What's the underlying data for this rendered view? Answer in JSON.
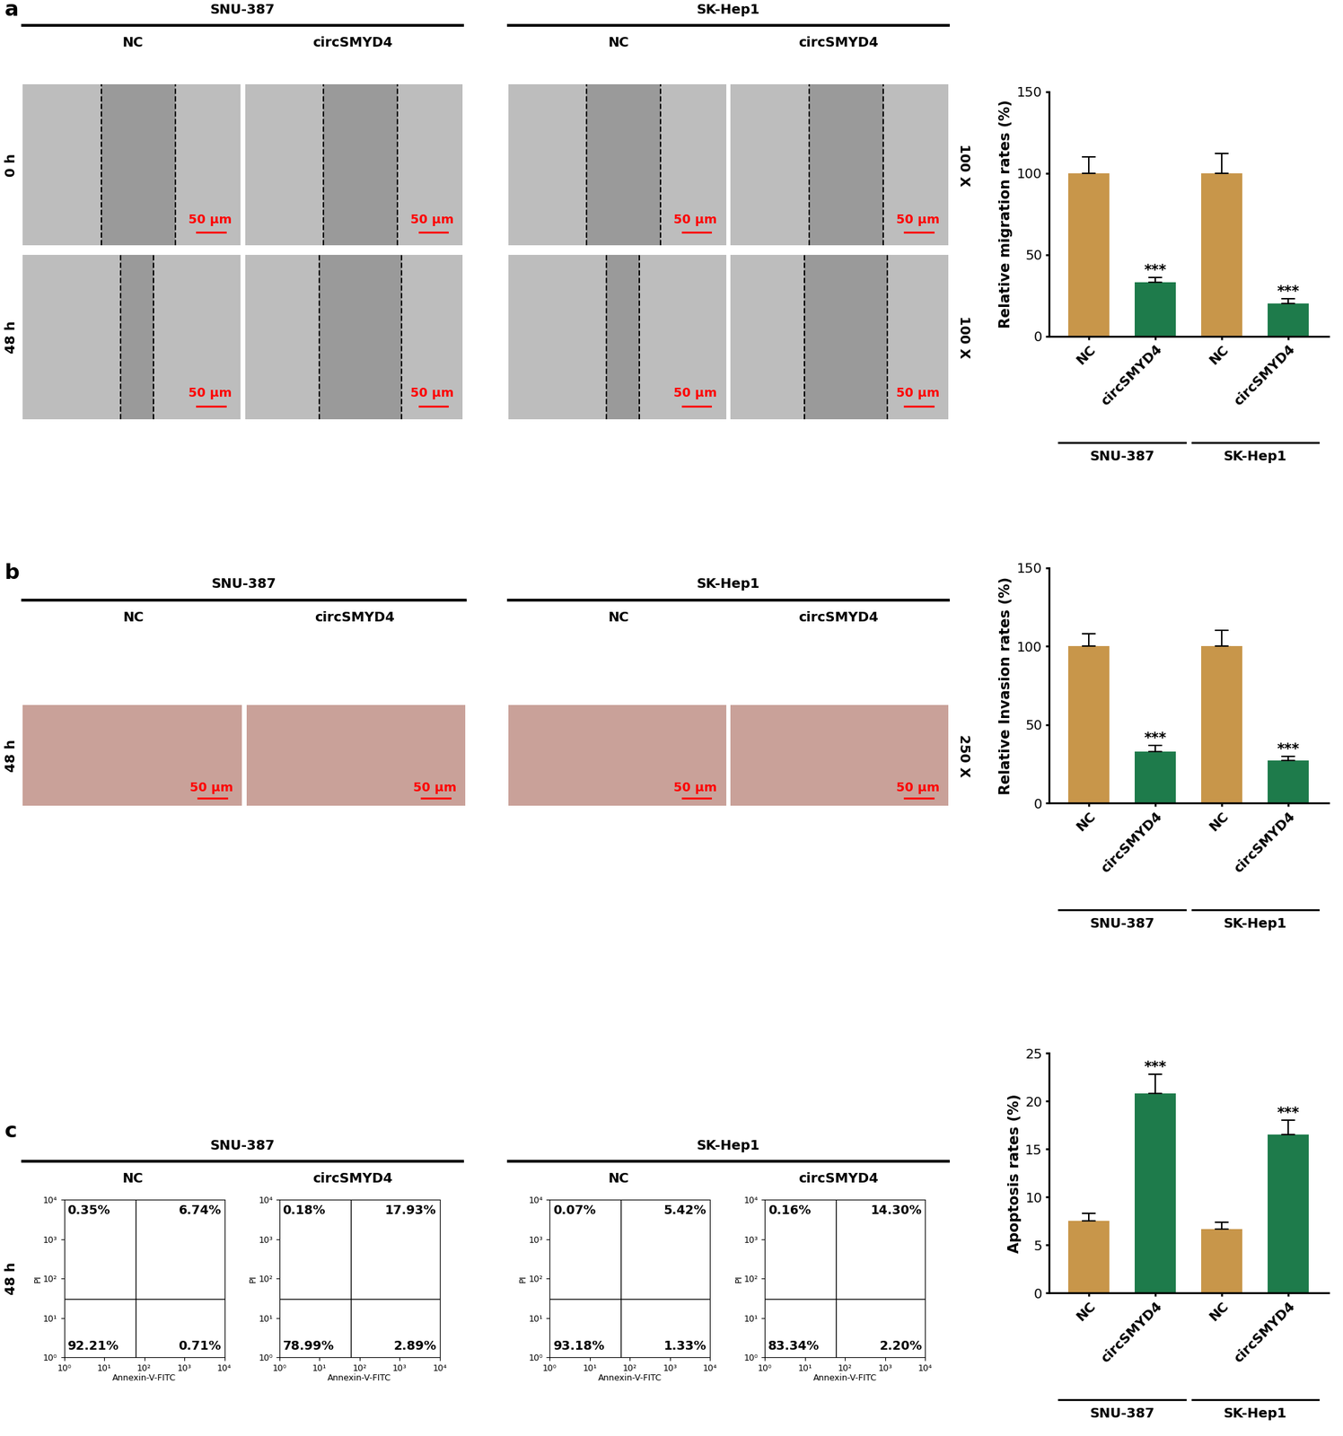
{
  "chart_data": [
    {
      "panel": "a",
      "type": "bar",
      "categories": [
        "NC",
        "circSMYD4",
        "NC",
        "circSMYD4"
      ],
      "group_labels": [
        "SNU-387",
        "SK-Hep1"
      ],
      "values": [
        100,
        33,
        100,
        20
      ],
      "errors": [
        10,
        3,
        12,
        3
      ],
      "colors": [
        "#c8964a",
        "#1e7b4b",
        "#c8964a",
        "#1e7b4b"
      ],
      "y_label": "Relative migration rates (%)",
      "ylim": [
        0,
        150
      ],
      "yticks": [
        0,
        50,
        100,
        150
      ],
      "significance": [
        null,
        "***",
        null,
        "***"
      ]
    },
    {
      "panel": "b",
      "type": "bar",
      "categories": [
        "NC",
        "circSMYD4",
        "NC",
        "circSMYD4"
      ],
      "group_labels": [
        "SNU-387",
        "SK-Hep1"
      ],
      "values": [
        100,
        33,
        100,
        27
      ],
      "errors": [
        8,
        4,
        10,
        3
      ],
      "colors": [
        "#c8964a",
        "#1e7b4b",
        "#c8964a",
        "#1e7b4b"
      ],
      "y_label": "Relative Invasion rates (%)",
      "ylim": [
        0,
        150
      ],
      "yticks": [
        0,
        50,
        100,
        150
      ],
      "significance": [
        null,
        "***",
        null,
        "***"
      ]
    },
    {
      "panel": "c",
      "type": "bar",
      "categories": [
        "NC",
        "circSMYD4",
        "NC",
        "circSMYD4"
      ],
      "group_labels": [
        "SNU-387",
        "SK-Hep1"
      ],
      "values": [
        7.5,
        20.8,
        6.7,
        16.5
      ],
      "errors": [
        0.8,
        2.0,
        0.7,
        1.5
      ],
      "colors": [
        "#c8964a",
        "#1e7b4b",
        "#c8964a",
        "#1e7b4b"
      ],
      "y_label": "Apoptosis rates (%)",
      "ylim": [
        0,
        25
      ],
      "yticks": [
        0,
        5,
        10,
        15,
        20,
        25
      ],
      "significance": [
        null,
        "***",
        null,
        "***"
      ]
    }
  ],
  "micrographs": {
    "a": {
      "cell_lines": [
        "SNU-387",
        "SK-Hep1"
      ],
      "conditions": [
        "NC",
        "circSMYD4"
      ],
      "timepoints": [
        "0 h",
        "48 h"
      ],
      "magnification": "100 X",
      "scale_bar": "50 μm"
    },
    "b": {
      "cell_lines": [
        "SNU-387",
        "SK-Hep1"
      ],
      "conditions": [
        "NC",
        "circSMYD4"
      ],
      "timepoints": [
        "48 h"
      ],
      "magnification": "250 X",
      "scale_bar": "50 μm"
    }
  },
  "flow_cytometry": {
    "panel": "c",
    "timepoint": "48 h",
    "x_label": "Annexin-V-FITC",
    "y_label": "PI",
    "log": true,
    "xlim": [
      1,
      10000
    ],
    "ylim": [
      1,
      10000
    ],
    "xticks": [
      {
        "value": 1,
        "label": "10⁰"
      },
      {
        "value": 10,
        "label": "10¹"
      },
      {
        "value": 100,
        "label": "10²"
      },
      {
        "value": 1000,
        "label": "10³"
      },
      {
        "value": 10000,
        "label": "10⁴"
      }
    ],
    "yticks": [
      {
        "value": 1,
        "label": "10⁰"
      },
      {
        "value": 10,
        "label": "10¹"
      },
      {
        "value": 100,
        "label": "10²"
      },
      {
        "value": 1000,
        "label": "10³"
      },
      {
        "value": 10000,
        "label": "10⁴"
      }
    ],
    "gate": {
      "x": 60,
      "y": 30
    },
    "groups": [
      {
        "cell_line": "SNU-387",
        "plots": [
          {
            "condition": "NC",
            "quadrants": {
              "upper_left": {
                "value": 0.35,
                "label": "0.35%"
              },
              "upper_right": {
                "value": 6.74,
                "label": "6.74%"
              },
              "lower_left": {
                "value": 92.21,
                "label": "92.21%"
              },
              "lower_right": {
                "value": 0.71,
                "label": "0.71%"
              }
            }
          },
          {
            "condition": "circSMYD4",
            "quadrants": {
              "upper_left": {
                "value": 0.18,
                "label": "0.18%"
              },
              "upper_right": {
                "value": 17.93,
                "label": "17.93%"
              },
              "lower_left": {
                "value": 78.99,
                "label": "78.99%"
              },
              "lower_right": {
                "value": 2.89,
                "label": "2.89%"
              }
            }
          }
        ]
      },
      {
        "cell_line": "SK-Hep1",
        "plots": [
          {
            "condition": "NC",
            "quadrants": {
              "upper_left": {
                "value": 0.07,
                "label": "0.07%"
              },
              "upper_right": {
                "value": 5.42,
                "label": "5.42%"
              },
              "lower_left": {
                "value": 93.18,
                "label": "93.18%"
              },
              "lower_right": {
                "value": 1.33,
                "label": "1.33%"
              }
            }
          },
          {
            "condition": "circSMYD4",
            "quadrants": {
              "upper_left": {
                "value": 0.16,
                "label": "0.16%"
              },
              "upper_right": {
                "value": 14.3,
                "label": "14.30%"
              },
              "lower_left": {
                "value": 83.34,
                "label": "83.34%"
              },
              "lower_right": {
                "value": 2.2,
                "label": "2.20%"
              }
            }
          }
        ]
      }
    ]
  }
}
